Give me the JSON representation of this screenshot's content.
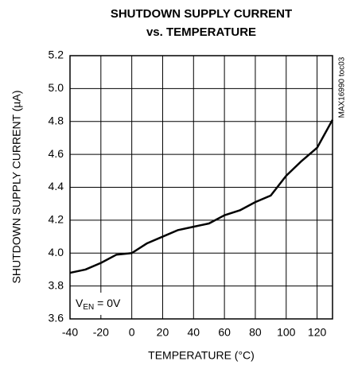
{
  "chart_data": {
    "type": "line",
    "title": [
      "SHUTDOWN SUPPLY CURRENT",
      "vs. TEMPERATURE"
    ],
    "x_label": "TEMPERATURE (°C)",
    "y_label": "SHUTDOWN SUPPLY CURRENT (µA)",
    "side_note": "MAX16990 toc03",
    "annotation": [
      "V",
      "EN",
      " = 0V"
    ],
    "x": [
      -40,
      -30,
      -20,
      -10,
      0,
      10,
      20,
      30,
      40,
      50,
      60,
      70,
      80,
      90,
      100,
      110,
      120,
      130
    ],
    "series": [
      {
        "color": "#000000",
        "values": [
          3.88,
          3.9,
          3.94,
          3.99,
          4.0,
          4.06,
          4.1,
          4.14,
          4.16,
          4.18,
          4.23,
          4.26,
          4.31,
          4.35,
          4.47,
          4.56,
          4.64,
          4.81
        ]
      }
    ],
    "xlim": [
      -40,
      130
    ],
    "xticks": [
      -40,
      -20,
      0,
      20,
      40,
      60,
      80,
      100,
      120
    ],
    "ylim": [
      3.6,
      5.2
    ],
    "yticks": [
      3.6,
      3.8,
      {
        "value": 4,
        "label": "4.0"
      },
      4.2,
      4.4,
      4.6,
      4.8,
      {
        "value": 5,
        "label": "5.0"
      },
      5.2
    ],
    "grid": true
  }
}
